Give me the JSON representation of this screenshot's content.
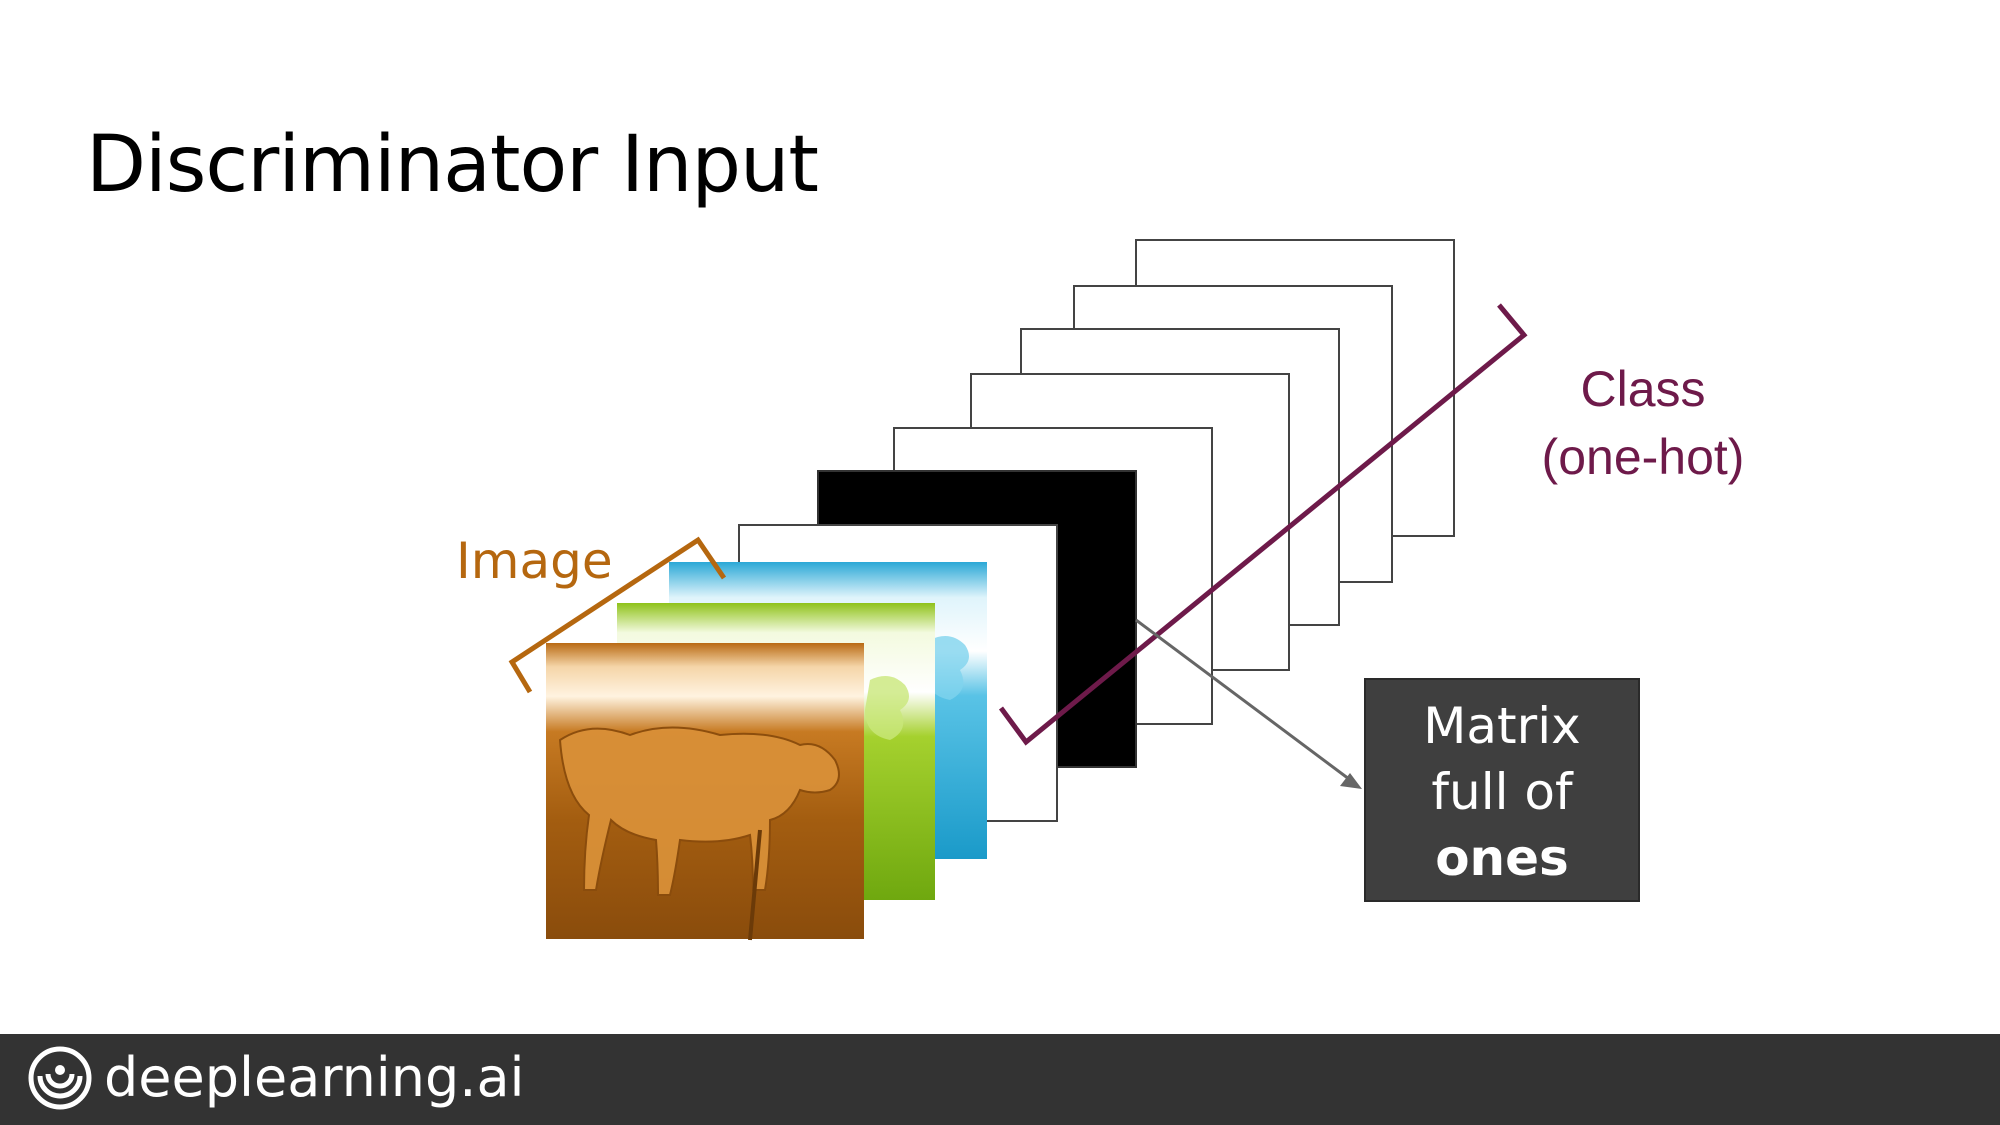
{
  "slide": {
    "title": "Discriminator Input"
  },
  "diagram": {
    "image_label": "Image",
    "class_label_line1": "Class",
    "class_label_line2": "(one-hot)",
    "matrix_callout": {
      "line1": "Matrix",
      "line2": "full of",
      "line3": "ones"
    },
    "colors": {
      "image_bracket": "#b5670f",
      "class_bracket": "#6e1a4a",
      "callout_bg": "#3f3f3f",
      "arrow": "#666666",
      "filled_channel": "#000000"
    }
  },
  "footer": {
    "brand": "deeplearning.ai",
    "logo_icon": "deeplearning-logo-icon"
  }
}
